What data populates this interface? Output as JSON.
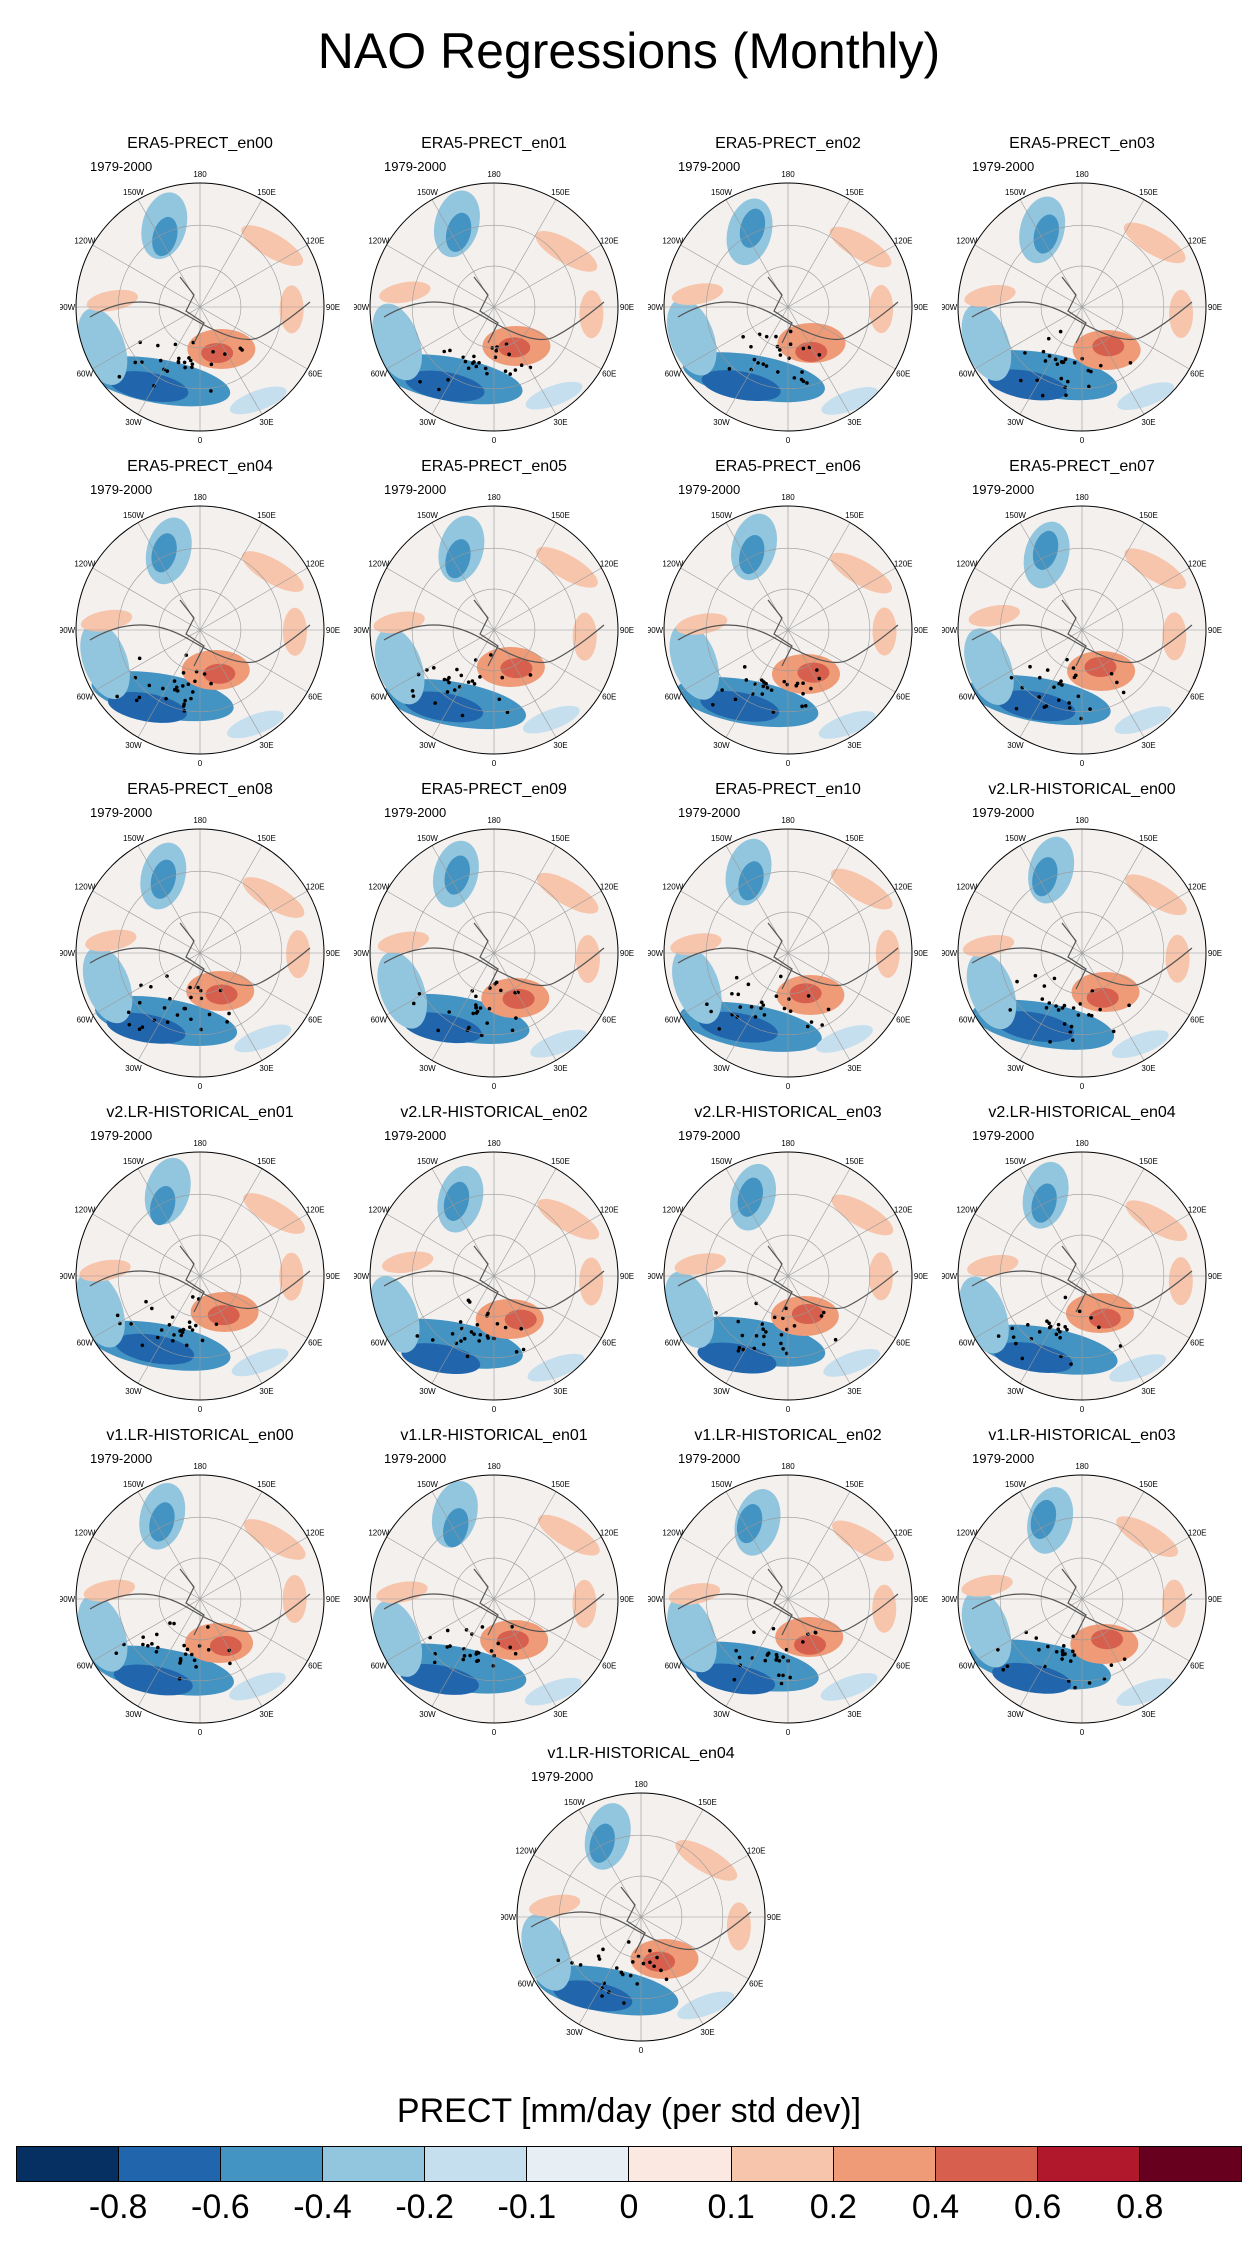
{
  "title": "NAO Regressions (Monthly)",
  "period": "1979-2000",
  "panels": [
    {
      "name": "ERA5-PRECT_en00"
    },
    {
      "name": "ERA5-PRECT_en01"
    },
    {
      "name": "ERA5-PRECT_en02"
    },
    {
      "name": "ERA5-PRECT_en03"
    },
    {
      "name": "ERA5-PRECT_en04"
    },
    {
      "name": "ERA5-PRECT_en05"
    },
    {
      "name": "ERA5-PRECT_en06"
    },
    {
      "name": "ERA5-PRECT_en07"
    },
    {
      "name": "ERA5-PRECT_en08"
    },
    {
      "name": "ERA5-PRECT_en09"
    },
    {
      "name": "ERA5-PRECT_en10"
    },
    {
      "name": "v2.LR-HISTORICAL_en00"
    },
    {
      "name": "v2.LR-HISTORICAL_en01"
    },
    {
      "name": "v2.LR-HISTORICAL_en02"
    },
    {
      "name": "v2.LR-HISTORICAL_en03"
    },
    {
      "name": "v2.LR-HISTORICAL_en04"
    },
    {
      "name": "v1.LR-HISTORICAL_en00"
    },
    {
      "name": "v1.LR-HISTORICAL_en01"
    },
    {
      "name": "v1.LR-HISTORICAL_en02"
    },
    {
      "name": "v1.LR-HISTORICAL_en03"
    },
    {
      "name": "v1.LR-HISTORICAL_en04"
    }
  ],
  "longitude_labels": [
    "180",
    "150E",
    "120E",
    "90E",
    "60E",
    "30E",
    "0",
    "30W",
    "60W",
    "90W",
    "120W",
    "150W"
  ],
  "colorbar": {
    "title": "PRECT [mm/day (per std dev)]",
    "colors": [
      "#053061",
      "#2166ac",
      "#4393c3",
      "#92c5de",
      "#c6dfee",
      "#e8eff4",
      "#fbe9e1",
      "#f7c5ab",
      "#ef9b77",
      "#d6604d",
      "#b2182b",
      "#67001f"
    ],
    "ticks": [
      "-0.8",
      "-0.6",
      "-0.4",
      "-0.2",
      "-0.1",
      "0",
      "0.1",
      "0.2",
      "0.4",
      "0.6",
      "0.8"
    ]
  }
}
